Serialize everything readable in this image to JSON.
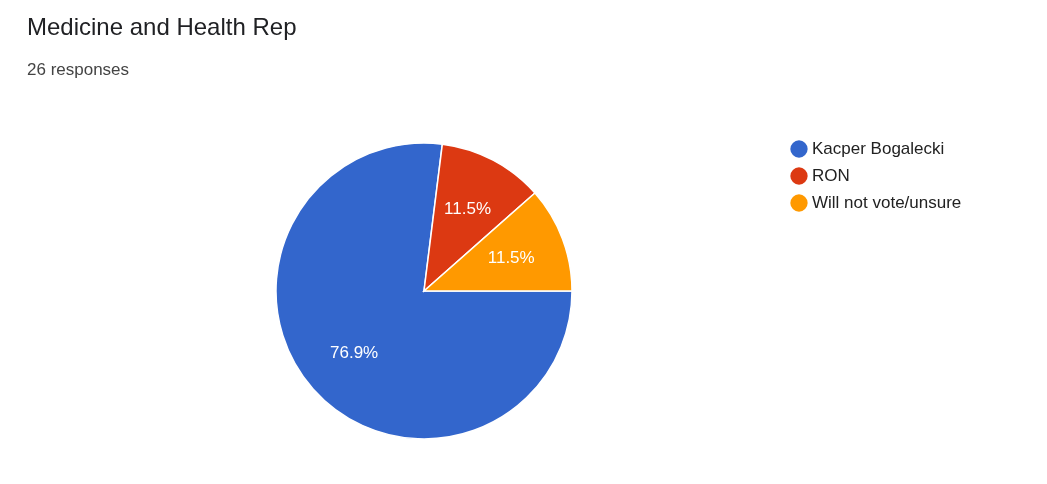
{
  "chart_data": {
    "type": "pie",
    "title": "Medicine and Health Rep",
    "subtitle": "26 responses",
    "categories": [
      "Kacper Bogalecki",
      "RON",
      "Will not vote/unsure"
    ],
    "values": [
      76.9,
      11.5,
      11.5
    ],
    "colors": [
      "#3366cc",
      "#dc3912",
      "#ff9900"
    ],
    "value_labels": [
      "76.9%",
      "11.5%",
      "11.5%"
    ],
    "legend": "right"
  }
}
